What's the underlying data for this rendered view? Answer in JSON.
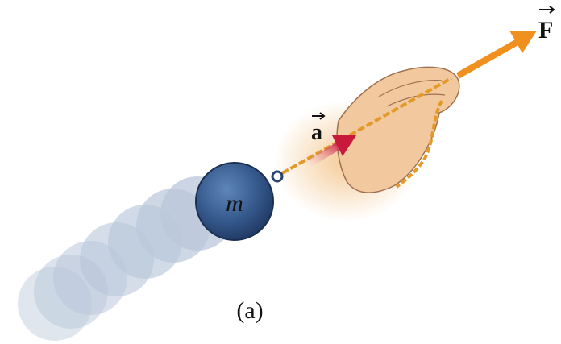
{
  "labels": {
    "force": "F",
    "acceleration": "a",
    "mass": "m",
    "caption": "(a)"
  }
}
